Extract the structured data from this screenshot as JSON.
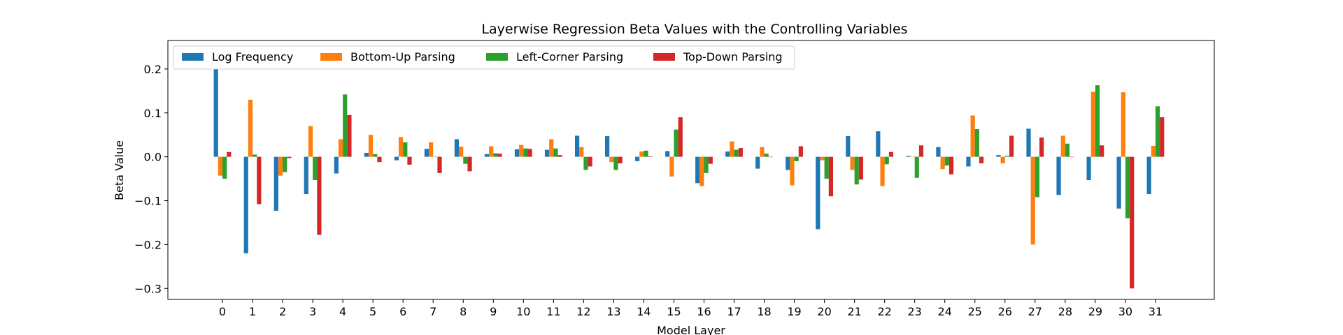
{
  "chart_data": {
    "type": "bar",
    "title": "Layerwise Regression Beta Values with the Controlling Variables",
    "xlabel": "Model Layer",
    "ylabel": "Beta Value",
    "ylim": [
      -0.325,
      0.265
    ],
    "yticks": [
      0.2,
      0.1,
      0.0,
      -0.1,
      -0.2,
      -0.3
    ],
    "ytick_labels": [
      "0.2",
      "0.1",
      "0.0",
      "−0.1",
      "−0.2",
      "−0.3"
    ],
    "legend_position": "top-left",
    "grid": false,
    "categories": [
      "0",
      "1",
      "2",
      "3",
      "4",
      "5",
      "6",
      "7",
      "8",
      "9",
      "10",
      "11",
      "12",
      "13",
      "14",
      "15",
      "16",
      "17",
      "18",
      "19",
      "20",
      "21",
      "22",
      "23",
      "24",
      "25",
      "26",
      "27",
      "28",
      "29",
      "30",
      "31"
    ],
    "series": [
      {
        "name": "Log Frequency",
        "color": "#1f77b4",
        "values": [
          0.22,
          -0.22,
          -0.123,
          -0.085,
          -0.038,
          0.009,
          -0.008,
          0.018,
          0.04,
          0.006,
          0.017,
          0.016,
          0.048,
          0.047,
          -0.01,
          0.013,
          -0.06,
          0.012,
          -0.027,
          -0.03,
          -0.165,
          0.047,
          0.058,
          0.002,
          0.022,
          -0.022,
          0.004,
          0.064,
          -0.087,
          -0.053,
          -0.118,
          -0.085
        ]
      },
      {
        "name": "Bottom-Up Parsing",
        "color": "#ff7f0e",
        "values": [
          -0.043,
          0.13,
          -0.043,
          0.07,
          0.04,
          0.05,
          0.045,
          0.033,
          0.023,
          0.024,
          0.027,
          0.04,
          0.022,
          -0.012,
          0.012,
          -0.045,
          -0.067,
          0.035,
          0.022,
          -0.065,
          -0.008,
          -0.03,
          -0.067,
          0.0,
          -0.028,
          0.094,
          -0.015,
          -0.2,
          0.048,
          0.148,
          0.147,
          0.025
        ]
      },
      {
        "name": "Left-Corner Parsing",
        "color": "#2ca02c",
        "values": [
          -0.05,
          0.005,
          -0.035,
          -0.053,
          0.142,
          0.006,
          0.033,
          0.0,
          -0.016,
          0.008,
          0.019,
          0.019,
          -0.03,
          -0.03,
          0.014,
          0.062,
          -0.037,
          0.016,
          0.007,
          -0.01,
          -0.05,
          -0.063,
          -0.017,
          -0.048,
          -0.02,
          0.063,
          0.002,
          -0.092,
          0.03,
          0.163,
          -0.14,
          0.115
        ]
      },
      {
        "name": "Top-Down Parsing",
        "color": "#d62728",
        "values": [
          0.011,
          -0.108,
          -0.003,
          -0.178,
          0.095,
          -0.012,
          -0.018,
          -0.037,
          -0.033,
          0.007,
          0.018,
          0.004,
          -0.022,
          -0.015,
          0.001,
          0.09,
          -0.016,
          0.02,
          0.0,
          0.024,
          -0.09,
          -0.052,
          0.011,
          0.026,
          -0.04,
          -0.015,
          0.048,
          0.044,
          0.0,
          0.026,
          -0.3,
          0.09
        ]
      }
    ]
  }
}
